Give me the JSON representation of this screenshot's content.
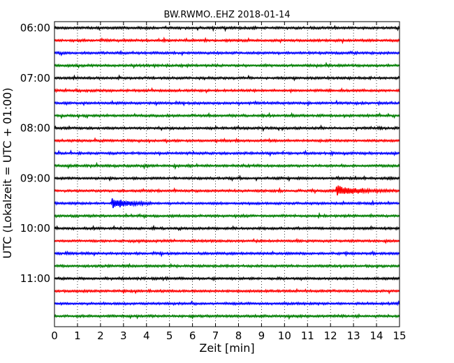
{
  "chart_data": {
    "type": "line",
    "subtype": "seismogram-helicorder",
    "title": "BW.RWMO..EHZ 2018-01-14",
    "xlabel": "Zeit  [min]",
    "ylabel": "UTC (Lokalzeit = UTC + 01:00)",
    "xlim": [
      0,
      15
    ],
    "x_ticks": [
      "0",
      "1",
      "2",
      "3",
      "4",
      "5",
      "6",
      "7",
      "8",
      "9",
      "10",
      "11",
      "12",
      "13",
      "14",
      "15"
    ],
    "y_ticks": [
      "06:00",
      "07:00",
      "08:00",
      "09:00",
      "10:00",
      "11:00"
    ],
    "grid": {
      "x": true,
      "y": false,
      "style": "dotted"
    },
    "trace_colors": [
      "#000000",
      "#ff0000",
      "#0000ff",
      "#007f00"
    ],
    "trace_interval_minutes": 15,
    "traces": [
      {
        "start": "06:00",
        "color": "#000000"
      },
      {
        "start": "06:15",
        "color": "#ff0000"
      },
      {
        "start": "06:30",
        "color": "#0000ff"
      },
      {
        "start": "06:45",
        "color": "#007f00"
      },
      {
        "start": "07:00",
        "color": "#000000"
      },
      {
        "start": "07:15",
        "color": "#ff0000"
      },
      {
        "start": "07:30",
        "color": "#0000ff"
      },
      {
        "start": "07:45",
        "color": "#007f00"
      },
      {
        "start": "08:00",
        "color": "#000000"
      },
      {
        "start": "08:15",
        "color": "#ff0000"
      },
      {
        "start": "08:30",
        "color": "#0000ff"
      },
      {
        "start": "08:45",
        "color": "#007f00"
      },
      {
        "start": "09:00",
        "color": "#000000"
      },
      {
        "start": "09:15",
        "color": "#ff0000",
        "events": [
          {
            "minute": 12.25,
            "amplitude": 7,
            "duration": 2.6
          }
        ]
      },
      {
        "start": "09:30",
        "color": "#0000ff",
        "events": [
          {
            "minute": 2.5,
            "amplitude": 8,
            "duration": 1.8
          }
        ]
      },
      {
        "start": "09:45",
        "color": "#007f00"
      },
      {
        "start": "10:00",
        "color": "#000000"
      },
      {
        "start": "10:15",
        "color": "#ff0000"
      },
      {
        "start": "10:30",
        "color": "#0000ff"
      },
      {
        "start": "10:45",
        "color": "#007f00"
      },
      {
        "start": "11:00",
        "color": "#000000"
      },
      {
        "start": "11:15",
        "color": "#ff0000"
      },
      {
        "start": "11:30",
        "color": "#0000ff"
      },
      {
        "start": "11:45",
        "color": "#007f00"
      }
    ]
  }
}
